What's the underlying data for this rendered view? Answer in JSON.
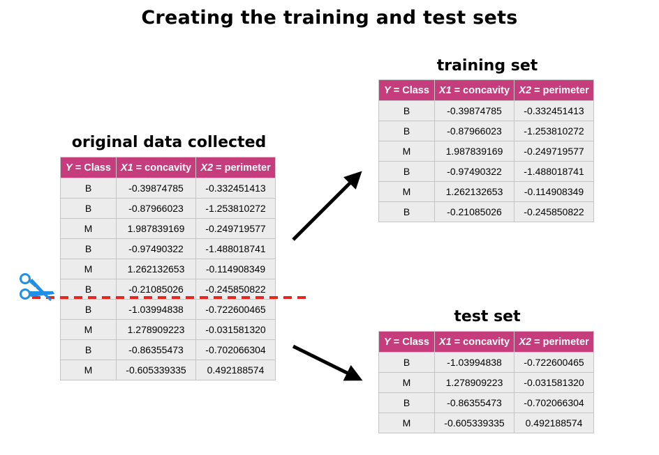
{
  "title": "Creating the training and test sets",
  "columns": [
    {
      "prefix": "Y",
      "suffix": " = Class"
    },
    {
      "prefix": "X1",
      "suffix": " = concavity"
    },
    {
      "prefix": "X2",
      "suffix": " = perimeter"
    }
  ],
  "original": {
    "caption": "original data collected",
    "rows": [
      [
        "B",
        "-0.39874785",
        "-0.332451413"
      ],
      [
        "B",
        "-0.87966023",
        "-1.253810272"
      ],
      [
        "M",
        "1.987839169",
        "-0.249719577"
      ],
      [
        "B",
        "-0.97490322",
        "-1.488018741"
      ],
      [
        "M",
        "1.262132653",
        "-0.114908349"
      ],
      [
        "B",
        "-0.21085026",
        "-0.245850822"
      ],
      [
        "B",
        "-1.03994838",
        "-0.722600465"
      ],
      [
        "M",
        "1.278909223",
        "-0.031581320"
      ],
      [
        "B",
        "-0.86355473",
        "-0.702066304"
      ],
      [
        "M",
        "-0.605339335",
        "0.492188574"
      ]
    ]
  },
  "training": {
    "caption": "training set",
    "rows": [
      [
        "B",
        "-0.39874785",
        "-0.332451413"
      ],
      [
        "B",
        "-0.87966023",
        "-1.253810272"
      ],
      [
        "M",
        "1.987839169",
        "-0.249719577"
      ],
      [
        "B",
        "-0.97490322",
        "-1.488018741"
      ],
      [
        "M",
        "1.262132653",
        "-0.114908349"
      ],
      [
        "B",
        "-0.21085026",
        "-0.245850822"
      ]
    ]
  },
  "test": {
    "caption": "test set",
    "rows": [
      [
        "B",
        "-1.03994838",
        "-0.722600465"
      ],
      [
        "M",
        "1.278909223",
        "-0.031581320"
      ],
      [
        "B",
        "-0.86355473",
        "-0.702066304"
      ],
      [
        "M",
        "-0.605339335",
        "0.492188574"
      ]
    ]
  },
  "colors": {
    "header": "#c63d7d",
    "cell": "#ececec",
    "split_line": "#e8261f",
    "scissors": "#1f8fe8",
    "arrow": "#000000"
  },
  "icons": {
    "scissors": "scissors-icon"
  }
}
